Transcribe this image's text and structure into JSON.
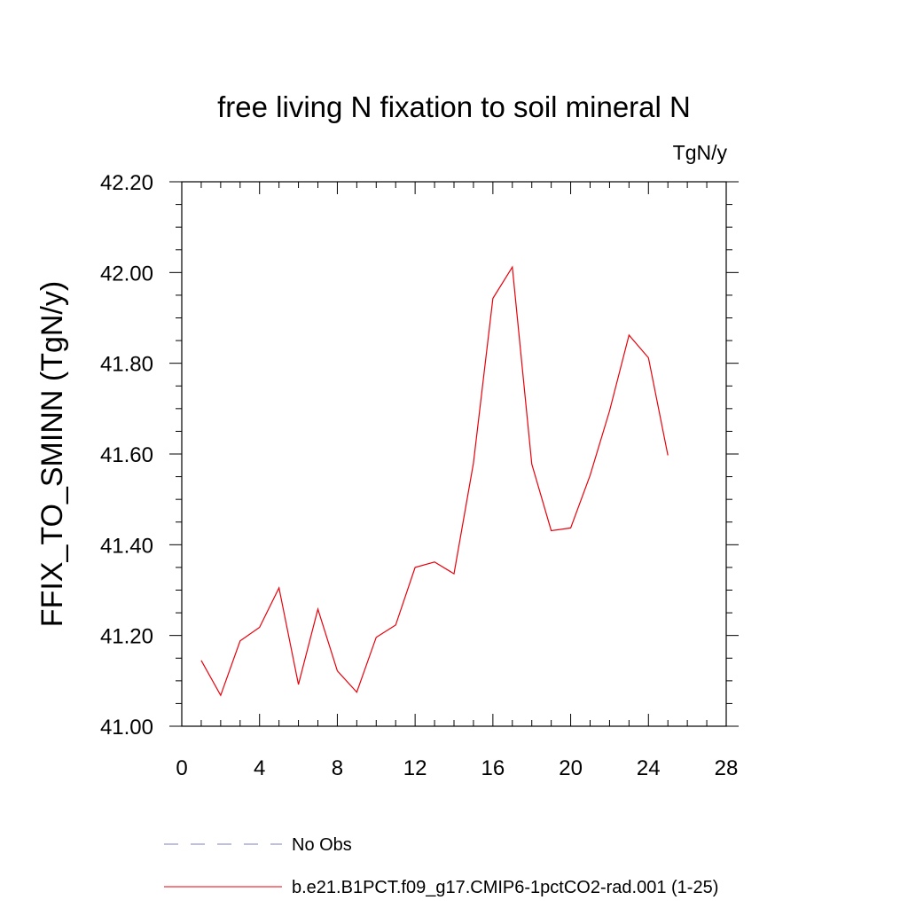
{
  "chart_data": {
    "type": "line",
    "title": "free living N fixation to soil mineral N",
    "units_label": "TgN/y",
    "xlabel": "",
    "ylabel": "FFIX_TO_SMINN  (TgN/y)",
    "xlim": [
      0,
      28
    ],
    "ylim": [
      41.0,
      42.2
    ],
    "x_ticks": [
      0,
      4,
      8,
      12,
      16,
      20,
      24,
      28
    ],
    "x_tick_labels": [
      "0",
      "4",
      "8",
      "12",
      "16",
      "20",
      "24",
      "28"
    ],
    "y_ticks": [
      41.0,
      41.2,
      41.4,
      41.6,
      41.8,
      42.0,
      42.2
    ],
    "y_tick_labels": [
      "41.00",
      "41.20",
      "41.40",
      "41.60",
      "41.80",
      "42.00",
      "42.20"
    ],
    "grid": false,
    "legend_position": "bottom",
    "series": [
      {
        "name": "No Obs",
        "color": "#7f7fbf",
        "dash": "dashed",
        "x": [],
        "y": []
      },
      {
        "name": "b.e21.B1PCT.f09_g17.CMIP6-1pctCO2-rad.001 (1-25)",
        "color": "#e8000b",
        "dash": "solid",
        "x": [
          1,
          2,
          3,
          4,
          5,
          6,
          7,
          8,
          9,
          10,
          11,
          12,
          13,
          14,
          15,
          16,
          17,
          18,
          19,
          20,
          21,
          22,
          23,
          24,
          25
        ],
        "y": [
          41.145,
          41.068,
          41.188,
          41.218,
          41.305,
          41.092,
          41.258,
          41.122,
          41.075,
          41.196,
          41.223,
          41.35,
          41.362,
          41.336,
          41.58,
          41.943,
          42.012,
          41.578,
          41.431,
          41.437,
          41.553,
          41.695,
          41.862,
          41.812,
          41.597
        ]
      }
    ]
  }
}
